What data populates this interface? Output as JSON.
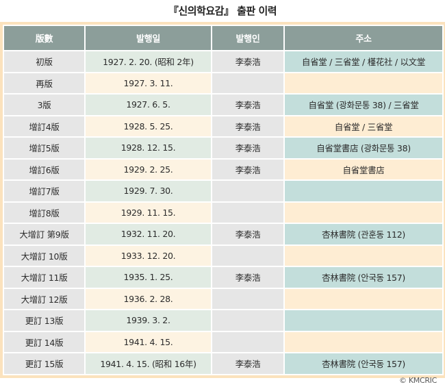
{
  "title": "『신의학요감』 출판 이력",
  "table": {
    "headers": [
      "版數",
      "발행일",
      "발행인",
      "주소"
    ],
    "rows": [
      {
        "edition": "初版",
        "date": "1927. 2. 20. (昭和 2年)",
        "publisher": "李泰浩",
        "address": "自省堂 / 三省堂 / 槿花社 / 以文堂"
      },
      {
        "edition": "再版",
        "date": "1927. 3. 11.",
        "publisher": "",
        "address": ""
      },
      {
        "edition": "3版",
        "date": "1927. 6. 5.",
        "publisher": "李泰浩",
        "address": "自省堂 (광화문통 38) / 三省堂"
      },
      {
        "edition": "增訂4版",
        "date": "1928. 5. 25.",
        "publisher": "李泰浩",
        "address": "自省堂 / 三省堂"
      },
      {
        "edition": "增訂5版",
        "date": "1928. 12. 15.",
        "publisher": "李泰浩",
        "address": "自省堂書店 (광화문통 38)"
      },
      {
        "edition": "增訂6版",
        "date": "1929. 2. 25.",
        "publisher": "李泰浩",
        "address": "自省堂書店"
      },
      {
        "edition": "增訂7版",
        "date": "1929. 7. 30.",
        "publisher": "",
        "address": ""
      },
      {
        "edition": "增訂8版",
        "date": "1929. 11. 15.",
        "publisher": "",
        "address": ""
      },
      {
        "edition": "大增訂 第9版",
        "date": "1932. 11. 20.",
        "publisher": "李泰浩",
        "address": "杏林書院 (관훈동 112)"
      },
      {
        "edition": "大增訂 10版",
        "date": "1933. 12. 20.",
        "publisher": "",
        "address": ""
      },
      {
        "edition": "大增訂 11版",
        "date": "1935. 1. 25.",
        "publisher": "李泰浩",
        "address": "杏林書院 (안국동 157)"
      },
      {
        "edition": "大增訂 12版",
        "date": "1936. 2. 28.",
        "publisher": "",
        "address": ""
      },
      {
        "edition": "更訂 13版",
        "date": "1939. 3. 2.",
        "publisher": "",
        "address": ""
      },
      {
        "edition": "更訂 14版",
        "date": "1941. 4. 15.",
        "publisher": "",
        "address": ""
      },
      {
        "edition": "更訂 15版",
        "date": "1941. 4. 15. (昭和 16年)",
        "publisher": "李泰浩",
        "address": "杏林書院 (안국동 157)"
      }
    ]
  },
  "copyright": "© KMCRIC",
  "colors": {
    "frame": "#fbe2bd",
    "header_bg": "#8c9e9a",
    "header_text": "#ffffff",
    "gray_cell": "#e6e6e6",
    "date_odd": "#e1ebe3",
    "date_even": "#fdf3e2",
    "addr_odd": "#c3dedb",
    "addr_even": "#feedd3"
  }
}
